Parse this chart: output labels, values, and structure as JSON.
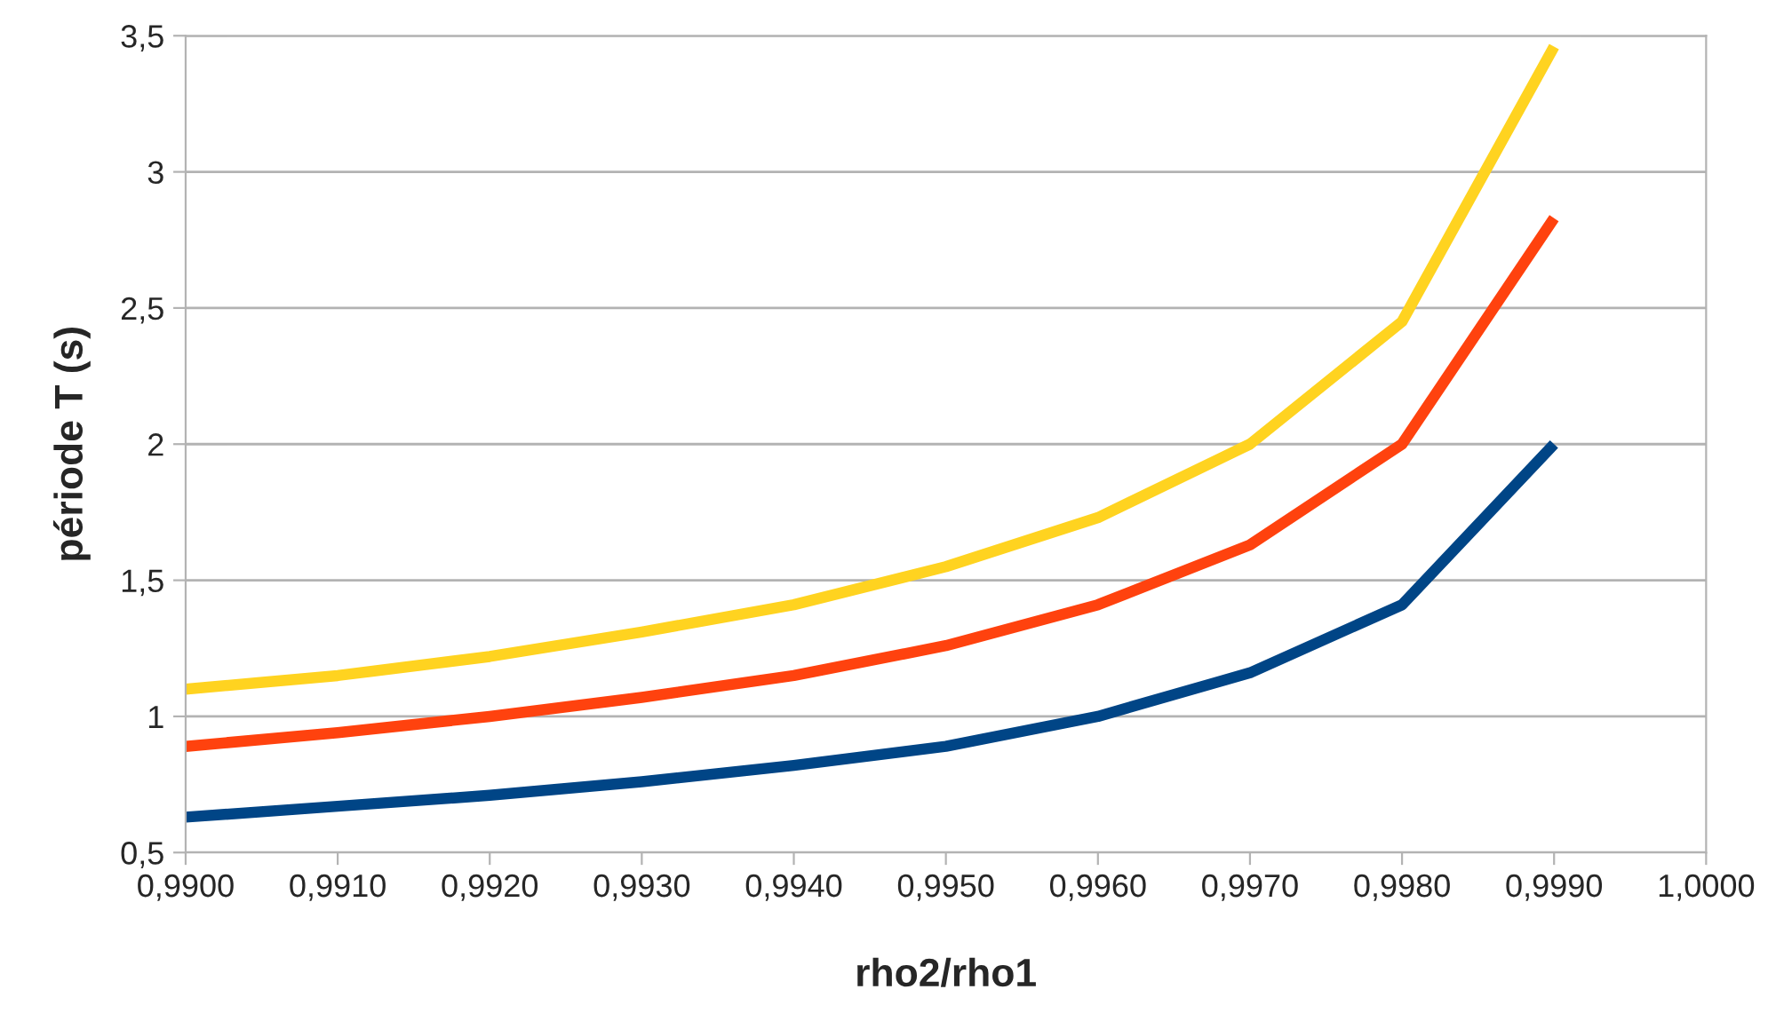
{
  "chart_data": {
    "type": "line",
    "xlabel": "rho2/rho1",
    "ylabel": "période T (s)",
    "x": [
      0.99,
      0.991,
      0.992,
      0.993,
      0.994,
      0.995,
      0.996,
      0.997,
      0.998,
      0.999
    ],
    "series": [
      {
        "color": "#004586",
        "values": [
          0.63,
          0.67,
          0.71,
          0.76,
          0.82,
          0.89,
          1.0,
          1.16,
          1.41,
          2.0
        ]
      },
      {
        "color": "#ff420e",
        "values": [
          0.89,
          0.94,
          1.0,
          1.07,
          1.15,
          1.26,
          1.41,
          1.63,
          2.0,
          2.83
        ]
      },
      {
        "color": "#ffd320",
        "values": [
          1.1,
          1.15,
          1.22,
          1.31,
          1.41,
          1.55,
          1.73,
          2.0,
          2.45,
          3.46
        ]
      }
    ],
    "xlim": [
      0.99,
      1.0
    ],
    "xticks": [
      {
        "value": 0.99,
        "label": "0,9900"
      },
      {
        "value": 0.991,
        "label": "0,9910"
      },
      {
        "value": 0.992,
        "label": "0,9920"
      },
      {
        "value": 0.993,
        "label": "0,9930"
      },
      {
        "value": 0.994,
        "label": "0,9940"
      },
      {
        "value": 0.995,
        "label": "0,9950"
      },
      {
        "value": 0.996,
        "label": "0,9960"
      },
      {
        "value": 0.997,
        "label": "0,9970"
      },
      {
        "value": 0.998,
        "label": "0,9980"
      },
      {
        "value": 0.999,
        "label": "0,9990"
      },
      {
        "value": 1.0,
        "label": "1,0000"
      }
    ],
    "ylim": [
      0.5,
      3.5
    ],
    "yticks": [
      {
        "value": 0.5,
        "label": "0,5"
      },
      1,
      {
        "value": 1.5,
        "label": "1,5"
      },
      2,
      {
        "value": 2.5,
        "label": "2,5"
      },
      3,
      {
        "value": 3.5,
        "label": "3,5"
      }
    ],
    "grid": "y",
    "marker": "none",
    "line_style": "solid"
  }
}
